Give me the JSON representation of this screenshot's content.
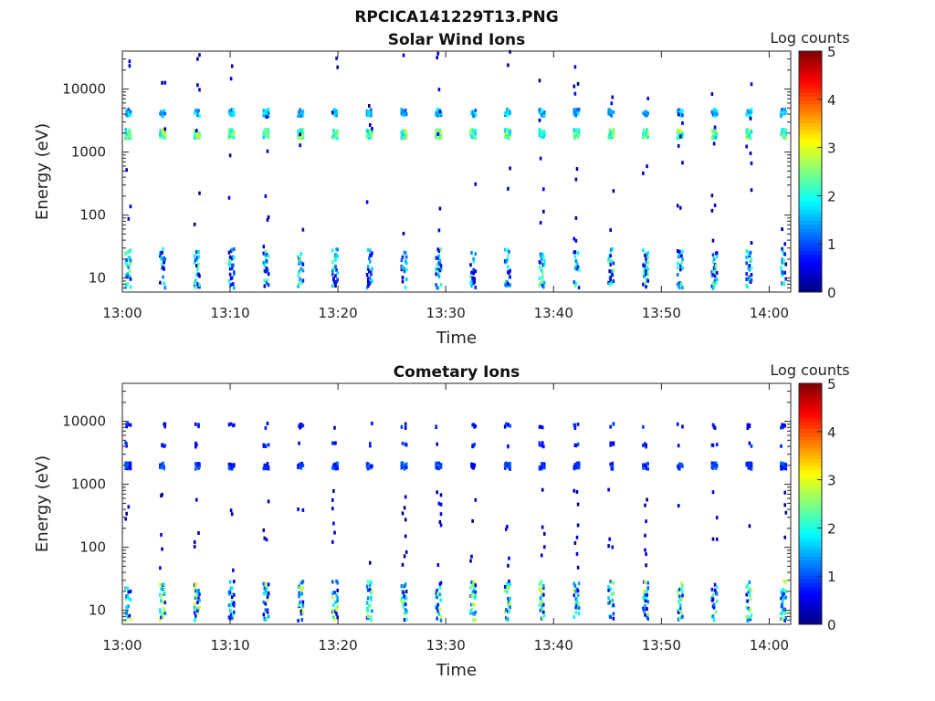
{
  "figure": {
    "suptitle": "RPCICA141229T13.PNG"
  },
  "chart_data": [
    {
      "type": "heatmap",
      "title": "Solar Wind Ions",
      "xlabel": "Time",
      "ylabel": "Energy (eV)",
      "x_ticks": [
        "13:00",
        "13:10",
        "13:20",
        "13:30",
        "13:40",
        "13:50",
        "14:00"
      ],
      "x_range": [
        "13:00",
        "14:02"
      ],
      "y_scale": "log",
      "y_ticks": [
        "10",
        "100",
        "1000",
        "10000"
      ],
      "y_range": [
        6,
        40000
      ],
      "colorbar": {
        "label": "Log counts",
        "range": [
          0,
          5
        ],
        "ticks": [
          "0",
          "1",
          "2",
          "3",
          "4",
          "5"
        ],
        "colormap": "jet"
      },
      "sweep_interval_min": 3.2,
      "bands": [
        {
          "energy_range_ev": [
            6,
            28
          ],
          "log_counts_range": [
            0.2,
            2.5
          ],
          "occupancy": "dense"
        },
        {
          "energy_range_ev": [
            1600,
            2200
          ],
          "log_counts_range": [
            1.5,
            3.0
          ],
          "occupancy": "dense"
        },
        {
          "energy_range_ev": [
            3600,
            4600
          ],
          "log_counts_range": [
            1.0,
            2.0
          ],
          "occupancy": "partial"
        },
        {
          "energy_range_ev": [
            30,
            40000
          ],
          "log_counts_range": [
            0.0,
            0.6
          ],
          "occupancy": "sparse"
        }
      ]
    },
    {
      "type": "heatmap",
      "title": "Cometary Ions",
      "xlabel": "Time",
      "ylabel": "Energy (eV)",
      "x_ticks": [
        "13:00",
        "13:10",
        "13:20",
        "13:30",
        "13:40",
        "13:50",
        "14:00"
      ],
      "x_range": [
        "13:00",
        "14:02"
      ],
      "y_scale": "log",
      "y_ticks": [
        "10",
        "100",
        "1000",
        "10000"
      ],
      "y_range": [
        6,
        40000
      ],
      "colorbar": {
        "label": "Log counts",
        "range": [
          0,
          5
        ],
        "ticks": [
          "0",
          "1",
          "2",
          "3",
          "4",
          "5"
        ],
        "colormap": "jet"
      },
      "sweep_interval_min": 3.2,
      "bands": [
        {
          "energy_range_ev": [
            6,
            28
          ],
          "log_counts_range": [
            0.3,
            3.0
          ],
          "occupancy": "dense"
        },
        {
          "energy_range_ev": [
            1700,
            2100
          ],
          "log_counts_range": [
            0.5,
            1.2
          ],
          "occupancy": "partial"
        },
        {
          "energy_range_ev": [
            3800,
            4400
          ],
          "log_counts_range": [
            0.3,
            1.0
          ],
          "occupancy": "rare"
        },
        {
          "energy_range_ev": [
            7500,
            9000
          ],
          "log_counts_range": [
            0.3,
            1.0
          ],
          "occupancy": "rare"
        },
        {
          "energy_range_ev": [
            40,
            800
          ],
          "log_counts_range": [
            0.0,
            0.6
          ],
          "occupancy": "sparse"
        }
      ]
    }
  ]
}
